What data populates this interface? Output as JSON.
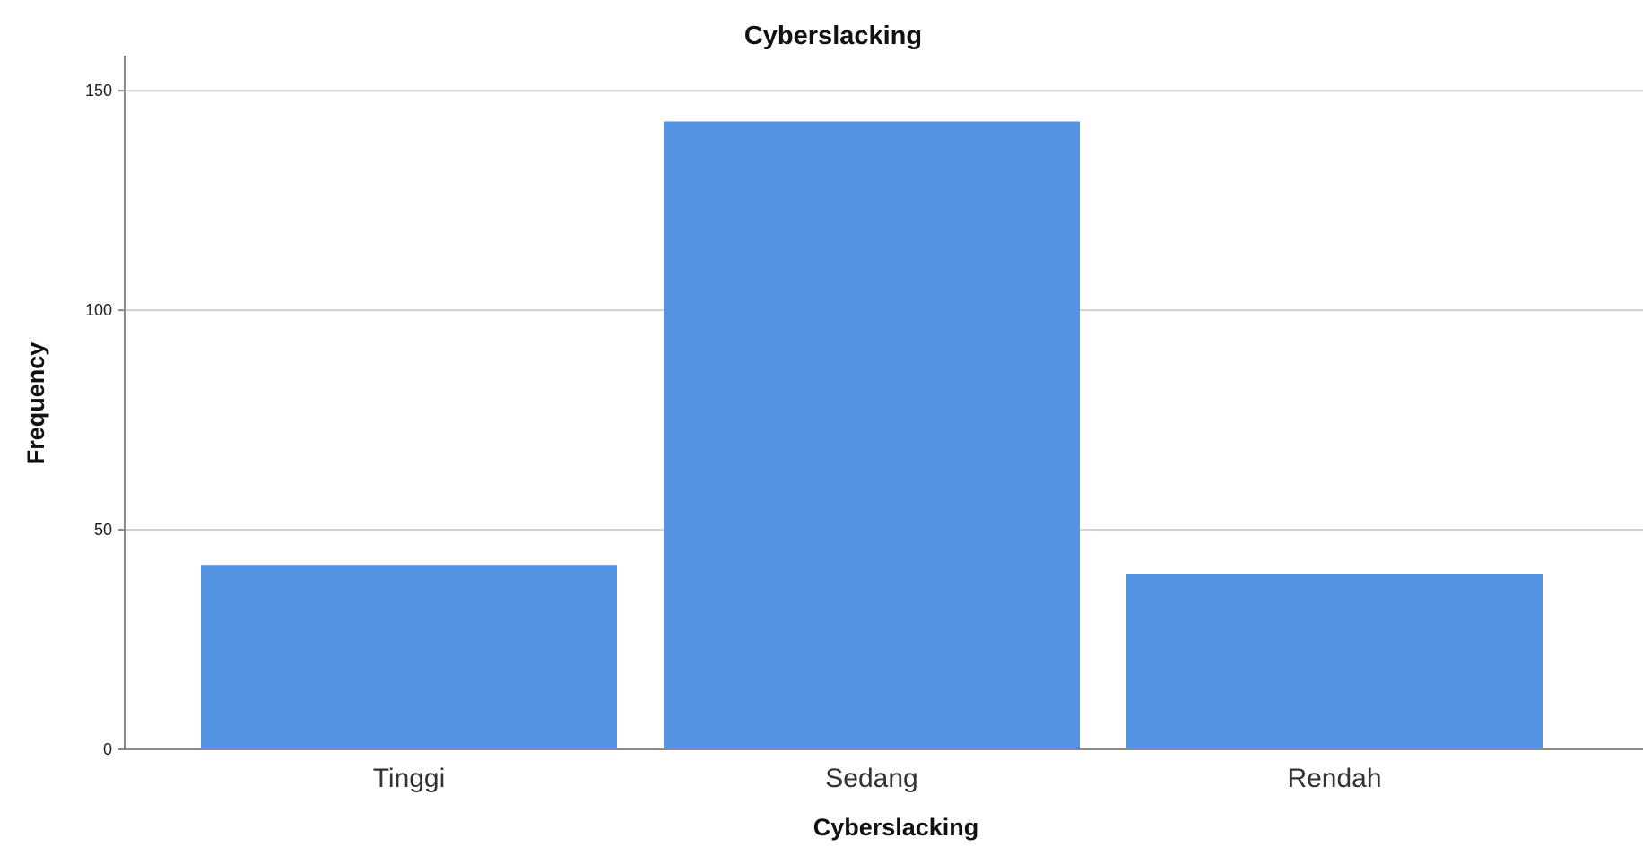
{
  "chart_data": {
    "type": "bar",
    "title": "Cyberslacking",
    "xlabel": "Cyberslacking",
    "ylabel": "Frequency",
    "categories": [
      "Tinggi",
      "Sedang",
      "Rendah"
    ],
    "values": [
      42,
      143,
      40
    ],
    "ylim": [
      0,
      158
    ],
    "yticks": [
      0,
      50,
      100,
      150
    ],
    "grid": true,
    "bar_color": "#5393e2",
    "grid_color": "#d0d0d0",
    "axis_color": "#8a8a8a"
  }
}
